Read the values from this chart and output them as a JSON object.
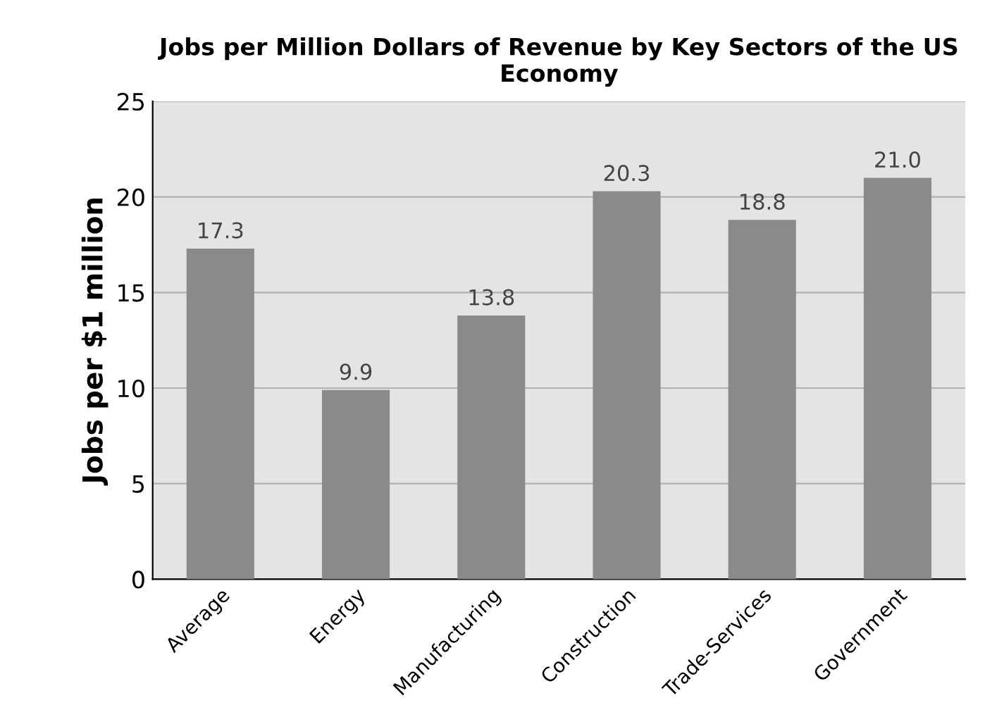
{
  "chart_data": {
    "type": "bar",
    "title": "Jobs per Million Dollars of Revenue by Key Sectors of the US Economy",
    "ylabel": "Jobs per $1 million",
    "categories": [
      "Average",
      "Energy",
      "Manufacturing",
      "Construction",
      "Trade-Services",
      "Government"
    ],
    "values": [
      17.3,
      9.9,
      13.8,
      20.3,
      18.8,
      21.0
    ],
    "value_labels": [
      "17.3",
      "9.9",
      "13.8",
      "20.3",
      "18.8",
      "21.0"
    ],
    "color": "#8a8a8a",
    "ylim": [
      0,
      25
    ],
    "yticks": [
      0,
      5,
      10,
      15,
      20,
      25
    ],
    "grid": "y"
  }
}
